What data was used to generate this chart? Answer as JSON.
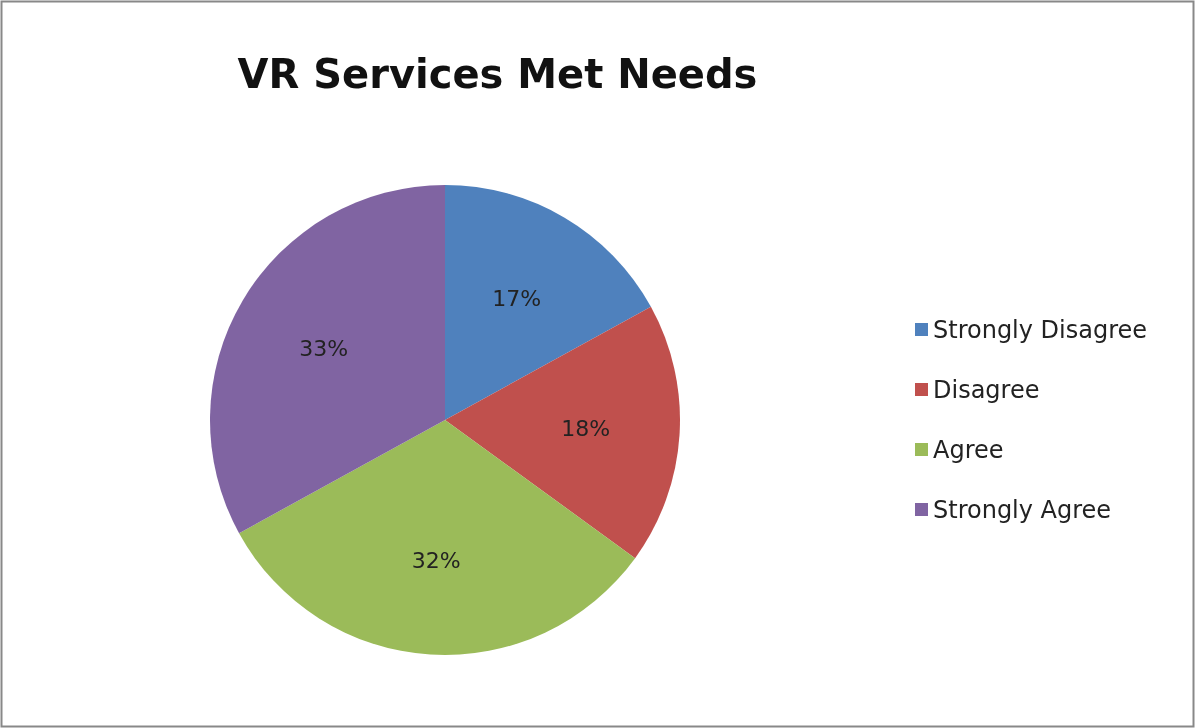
{
  "chart_data": {
    "type": "pie",
    "title": "VR Services Met Needs",
    "categories": [
      "Strongly Disagree",
      "Disagree",
      "Agree",
      "Strongly Agree"
    ],
    "values": [
      17,
      18,
      32,
      33
    ],
    "colors": [
      "#4f81bd",
      "#c0504d",
      "#9bbb59",
      "#8064a2"
    ],
    "value_labels": [
      "17%",
      "18%",
      "32%",
      "33%"
    ],
    "legend": "right"
  }
}
